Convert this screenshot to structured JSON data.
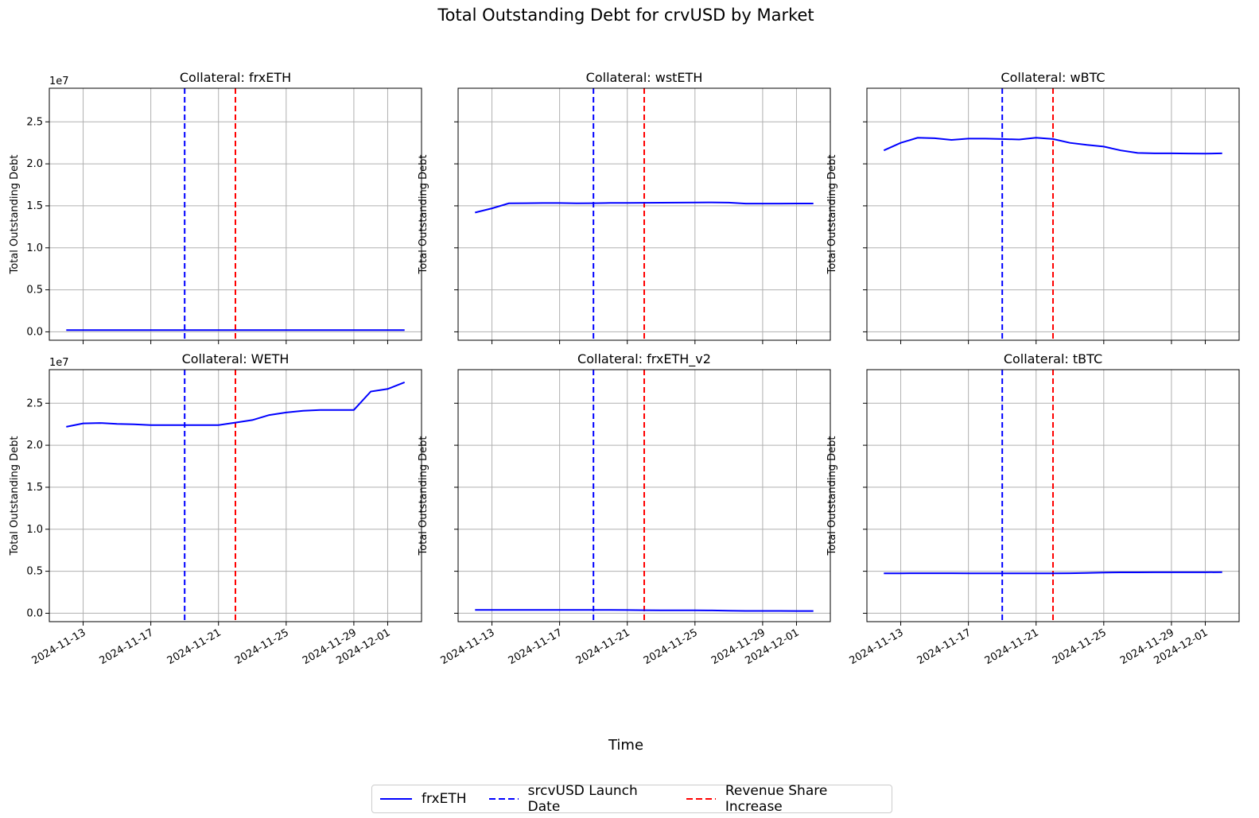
{
  "figure": {
    "title": "Total Outstanding Debt for crvUSD by Market",
    "xlabel": "Time",
    "ylabel": "Total Outstanding Debt",
    "offset_text": "1e7"
  },
  "legend": {
    "placement": "bottom-center",
    "items": [
      {
        "label": "frxETH",
        "color": "#0000ff",
        "style": "solid"
      },
      {
        "label": "srcvUSD Launch Date",
        "color": "#0000ff",
        "style": "dashed"
      },
      {
        "label": "Revenue Share Increase",
        "color": "#ff0000",
        "style": "dashed"
      }
    ]
  },
  "chart_data": {
    "type": "line",
    "layout": "2x3 grid, shared x and y axes",
    "xlim": [
      "2024-11-11",
      "2024-12-03"
    ],
    "ylim": [
      -1000000,
      29000000
    ],
    "y_ticks": [
      0,
      5000000,
      10000000,
      15000000,
      20000000,
      25000000
    ],
    "y_tick_labels": [
      "0.0",
      "0.5",
      "1.0",
      "1.5",
      "2.0",
      "2.5"
    ],
    "x_ticks": [
      "2024-11-13",
      "2024-11-17",
      "2024-11-21",
      "2024-11-25",
      "2024-11-29",
      "2024-12-01"
    ],
    "grid": true,
    "vlines": [
      {
        "name": "srcvUSD Launch Date",
        "date": "2024-11-19",
        "color": "#0000ff",
        "style": "dashed"
      },
      {
        "name": "Revenue Share Increase",
        "date": "2024-11-22",
        "color": "#ff0000",
        "style": "dashed"
      }
    ],
    "dates": [
      "2024-11-12",
      "2024-11-13",
      "2024-11-14",
      "2024-11-15",
      "2024-11-16",
      "2024-11-17",
      "2024-11-18",
      "2024-11-19",
      "2024-11-20",
      "2024-11-21",
      "2024-11-22",
      "2024-11-23",
      "2024-11-24",
      "2024-11-25",
      "2024-11-26",
      "2024-11-27",
      "2024-11-28",
      "2024-11-29",
      "2024-11-30",
      "2024-12-01",
      "2024-12-02"
    ],
    "subplots": [
      {
        "title": "Collateral: frxETH",
        "values": [
          200000,
          200000,
          200000,
          200000,
          200000,
          200000,
          200000,
          200000,
          200000,
          200000,
          200000,
          200000,
          200000,
          200000,
          200000,
          200000,
          200000,
          200000,
          200000,
          200000,
          200000
        ]
      },
      {
        "title": "Collateral: wstETH",
        "values": [
          14200000,
          14700000,
          15300000,
          15320000,
          15330000,
          15330000,
          15300000,
          15320000,
          15340000,
          15350000,
          15360000,
          15370000,
          15380000,
          15400000,
          15410000,
          15380000,
          15270000,
          15270000,
          15270000,
          15280000,
          15280000
        ]
      },
      {
        "title": "Collateral: wBTC",
        "values": [
          21600000,
          22500000,
          23100000,
          23050000,
          22850000,
          23000000,
          23000000,
          22950000,
          22900000,
          23100000,
          22950000,
          22500000,
          22250000,
          22050000,
          21600000,
          21300000,
          21250000,
          21250000,
          21230000,
          21220000,
          21250000
        ]
      },
      {
        "title": "Collateral: WETH",
        "values": [
          22200000,
          22600000,
          22650000,
          22550000,
          22500000,
          22400000,
          22400000,
          22400000,
          22400000,
          22400000,
          22700000,
          23000000,
          23600000,
          23900000,
          24100000,
          24200000,
          24200000,
          24200000,
          26400000,
          26700000,
          27500000
        ]
      },
      {
        "title": "Collateral: frxETH_v2",
        "values": [
          400000,
          400000,
          400000,
          400000,
          400000,
          400000,
          400000,
          400000,
          400000,
          380000,
          360000,
          350000,
          340000,
          340000,
          330000,
          310000,
          280000,
          280000,
          280000,
          270000,
          270000
        ]
      },
      {
        "title": "Collateral: tBTC",
        "values": [
          4750000,
          4750000,
          4760000,
          4760000,
          4760000,
          4750000,
          4740000,
          4740000,
          4740000,
          4740000,
          4750000,
          4760000,
          4800000,
          4850000,
          4870000,
          4870000,
          4880000,
          4880000,
          4880000,
          4880000,
          4900000
        ]
      }
    ]
  }
}
